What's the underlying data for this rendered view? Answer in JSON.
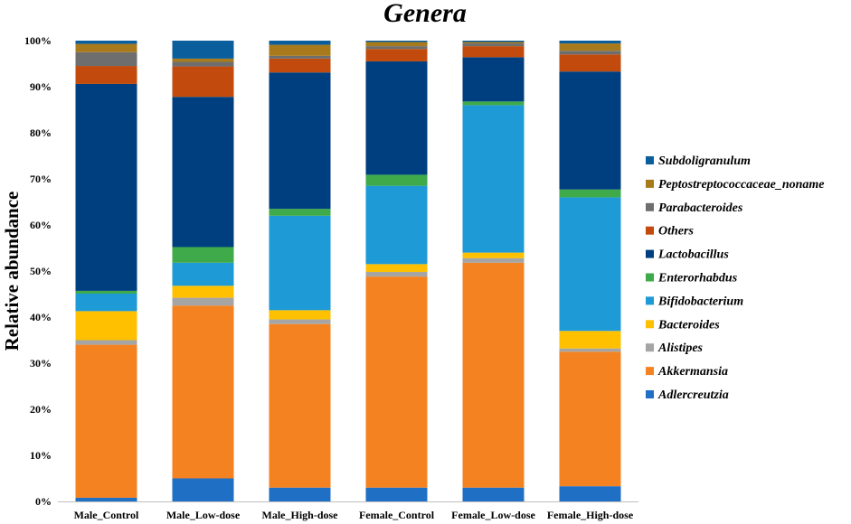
{
  "chart_data": {
    "type": "bar",
    "stacked": true,
    "title": "Genera",
    "ylabel": "Relative abundance",
    "xlabel": "",
    "ylim": [
      0,
      100
    ],
    "yticks": [
      "0%",
      "10%",
      "20%",
      "30%",
      "40%",
      "50%",
      "60%",
      "70%",
      "80%",
      "90%",
      "100%"
    ],
    "grid": false,
    "legend_position": "right",
    "categories": [
      "Male_Control",
      "Male_Low-dose",
      "Male_High-dose",
      "Female_Control",
      "Female_Low-dose",
      "Female_High-dose"
    ],
    "series": [
      {
        "name": "Adlercreutzia",
        "color": "#1F6FC5",
        "values": [
          0.8,
          5.0,
          3.0,
          3.0,
          3.0,
          3.3
        ]
      },
      {
        "name": "Akkermansia",
        "color": "#F58220",
        "values": [
          33.2,
          37.5,
          35.5,
          45.8,
          48.8,
          29.2
        ]
      },
      {
        "name": "Alistipes",
        "color": "#A5A5A5",
        "values": [
          1.0,
          1.7,
          1.0,
          1.0,
          1.0,
          0.7
        ]
      },
      {
        "name": "Bacteroides",
        "color": "#FFC000",
        "values": [
          6.3,
          2.6,
          2.0,
          1.7,
          1.2,
          3.8
        ]
      },
      {
        "name": "Bifidobacterium",
        "color": "#1E9AD6",
        "values": [
          3.8,
          5.0,
          20.5,
          17.0,
          32.0,
          29.0
        ]
      },
      {
        "name": "Enterorhabdus",
        "color": "#3EAA49",
        "values": [
          0.6,
          3.4,
          1.5,
          2.4,
          0.8,
          1.7
        ]
      },
      {
        "name": "Lactobacillus",
        "color": "#003F7F",
        "values": [
          44.9,
          32.6,
          29.6,
          24.6,
          9.6,
          25.6
        ]
      },
      {
        "name": "Others",
        "color": "#C14A0C",
        "values": [
          3.9,
          6.6,
          3.0,
          2.7,
          2.4,
          3.7
        ]
      },
      {
        "name": "Parabacteroides",
        "color": "#6E6E6E",
        "values": [
          3.0,
          1.0,
          0.6,
          0.6,
          0.6,
          0.8
        ]
      },
      {
        "name": "Peptostreptococcaceae_noname",
        "color": "#A97A1B",
        "values": [
          1.8,
          0.7,
          2.4,
          0.9,
          0.3,
          1.6
        ]
      },
      {
        "name": "Subdoligranulum",
        "color": "#0B5E9C",
        "values": [
          0.7,
          3.9,
          0.9,
          0.3,
          0.3,
          0.6
        ]
      }
    ]
  }
}
